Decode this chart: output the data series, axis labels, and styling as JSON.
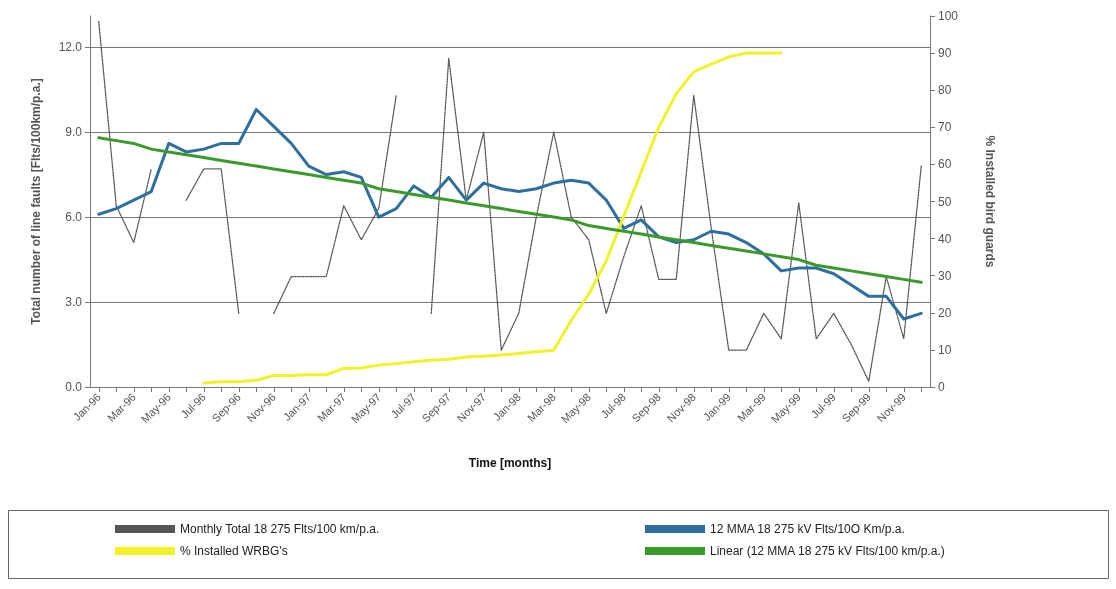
{
  "chart_data": {
    "type": "line",
    "xlabel": "Time [months]",
    "ylabel": "Total number of line faults [Flts/100km/p.a.]",
    "y2label": "% Installed bird guards",
    "categories": [
      "Jan-96",
      null,
      "Mar-96",
      null,
      "May-96",
      null,
      "Jul-96",
      null,
      "Sep-96",
      null,
      "Nov-96",
      null,
      "Jan-97",
      null,
      "Mar-97",
      null,
      "May-97",
      null,
      "Jul-97",
      null,
      "Sep-97",
      null,
      "Nov-97",
      null,
      "Jan-98",
      null,
      "Mar-98",
      null,
      "May-98",
      null,
      "Jul-98",
      null,
      "Sep-98",
      null,
      "Nov-98",
      null,
      "Jan-99",
      null,
      "Mar-99",
      null,
      "May-99",
      null,
      "Jul-99",
      null,
      "Sep-99",
      null,
      "Nov-99",
      null
    ],
    "series": [
      {
        "name": "Monthly Total 18 275 Flts/100 km/p.a.",
        "color": "#555555",
        "line_style": "dotted",
        "values": [
          12.9,
          6.4,
          5.1,
          7.7,
          null,
          6.6,
          7.7,
          7.7,
          2.6,
          null,
          2.6,
          3.9,
          3.9,
          3.9,
          6.4,
          5.2,
          6.3,
          10.3,
          null,
          2.6,
          11.6,
          6.6,
          9.0,
          1.3,
          2.6,
          6.0,
          9.0,
          6.0,
          5.2,
          2.6,
          4.6,
          6.4,
          3.8,
          3.8,
          10.3,
          5.6,
          1.3,
          1.3,
          2.6,
          1.7,
          6.5,
          1.7,
          2.6,
          1.5,
          0.2,
          3.9,
          1.7,
          7.8
        ]
      },
      {
        "name": "12 MMA 18 275 kV Flts/10O Km/p.a.",
        "color": "#2f6f9f",
        "line_style": "solid",
        "values": [
          6.1,
          6.3,
          6.6,
          6.9,
          8.6,
          8.3,
          8.4,
          8.6,
          8.6,
          9.8,
          9.2,
          8.6,
          7.8,
          7.5,
          7.6,
          7.4,
          6.0,
          6.3,
          7.1,
          6.7,
          7.4,
          6.6,
          7.2,
          7.0,
          6.9,
          7.0,
          7.2,
          7.3,
          7.2,
          6.6,
          5.6,
          5.9,
          5.3,
          5.1,
          5.2,
          5.5,
          5.4,
          5.1,
          4.7,
          4.1,
          4.2,
          4.2,
          4.0,
          3.6,
          3.2,
          3.2,
          2.4,
          2.6
        ]
      },
      {
        "name": "% Installed WRBG's",
        "color": "#f2f22a",
        "line_style": "solid",
        "axis": "y2",
        "values": [
          null,
          null,
          null,
          null,
          null,
          null,
          1.1,
          1.4,
          1.4,
          1.8,
          3.1,
          3.1,
          3.3,
          3.3,
          5.0,
          5.1,
          5.9,
          6.3,
          6.8,
          7.2,
          7.5,
          8.1,
          8.3,
          8.6,
          9.0,
          9.5,
          9.9,
          18,
          25,
          34,
          46,
          58,
          70,
          79,
          85,
          87,
          89,
          90,
          90,
          90,
          null,
          null,
          null,
          null,
          null,
          null,
          null,
          null
        ]
      },
      {
        "name": "Linear (12 MMA 18 275 kV Flts/100 km/p.a.)",
        "color": "#3c9a2c",
        "line_style": "solid",
        "values": [
          8.8,
          8.7,
          8.6,
          8.4,
          8.3,
          8.2,
          8.1,
          8.0,
          7.9,
          7.8,
          7.7,
          7.6,
          7.5,
          7.4,
          7.3,
          7.2,
          7.0,
          6.9,
          6.8,
          6.7,
          6.6,
          6.5,
          6.4,
          6.3,
          6.2,
          6.1,
          6.0,
          5.9,
          5.7,
          5.6,
          5.5,
          5.4,
          5.3,
          5.2,
          5.1,
          5.0,
          4.9,
          4.8,
          4.7,
          4.6,
          4.5,
          4.3,
          4.2,
          4.1,
          4.0,
          3.9,
          3.8,
          3.7
        ]
      }
    ],
    "ylim": [
      0,
      13.1
    ],
    "yticks": [
      {
        "value": 0,
        "label": "0.0"
      },
      {
        "value": 3,
        "label": "3.0"
      },
      {
        "value": 6,
        "label": "6.0"
      },
      {
        "value": 9,
        "label": "9.0"
      },
      {
        "value": 12,
        "label": "12.0"
      }
    ],
    "y2lim": [
      0,
      100
    ],
    "y2ticks": [
      0,
      10,
      20,
      30,
      40,
      50,
      60,
      70,
      80,
      90,
      100
    ],
    "grid": "y",
    "legend": "bottom",
    "marker": "none"
  }
}
